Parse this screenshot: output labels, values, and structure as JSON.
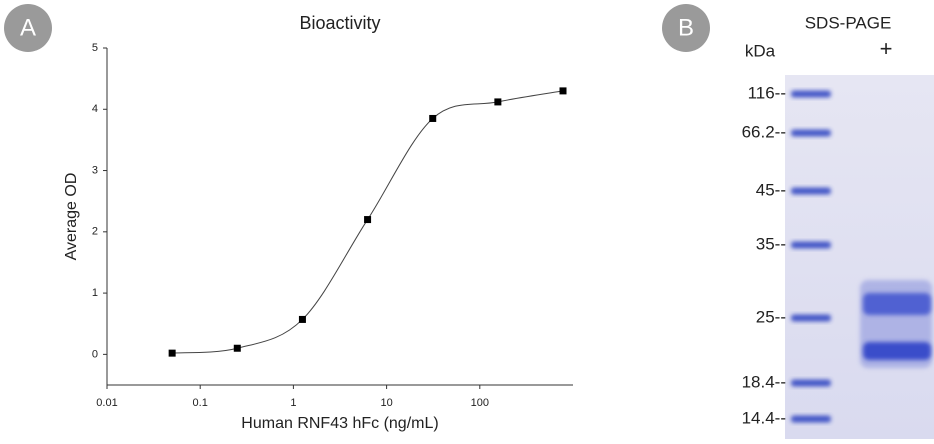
{
  "chart_data": [
    {
      "type": "scatter",
      "panel_label": "A",
      "title": "Bioactivity",
      "x_label": "Human RNF43 hFc (ng/mL)",
      "y_label": "Average OD",
      "log_x": true,
      "color": "#000000",
      "x": [
        0.05,
        0.25,
        1.25,
        6.25,
        31.25,
        156.25,
        781.25
      ],
      "values": [
        0.02,
        0.1,
        0.57,
        2.2,
        3.85,
        4.12,
        4.3
      ],
      "xlim": [
        0.01,
        1000
      ],
      "xticks": [
        0.01,
        0.1,
        1,
        10,
        100
      ],
      "ylim": [
        -0.5,
        5
      ],
      "yticks": [
        0,
        1,
        2,
        3,
        4,
        5
      ]
    },
    {
      "type": "gel",
      "panel_label": "B",
      "title": "SDS-PAGE",
      "unit_label": "kDa",
      "lanes": [
        "+"
      ],
      "markers": [
        {
          "value": 116,
          "label": "116--"
        },
        {
          "value": 66.2,
          "label": "66.2--"
        },
        {
          "value": 45,
          "label": "45--"
        },
        {
          "value": 35,
          "label": "35--"
        },
        {
          "value": 25,
          "label": "25--"
        },
        {
          "value": 18.4,
          "label": "18.4--"
        },
        {
          "value": 14.4,
          "label": "14.4--"
        }
      ]
    }
  ]
}
